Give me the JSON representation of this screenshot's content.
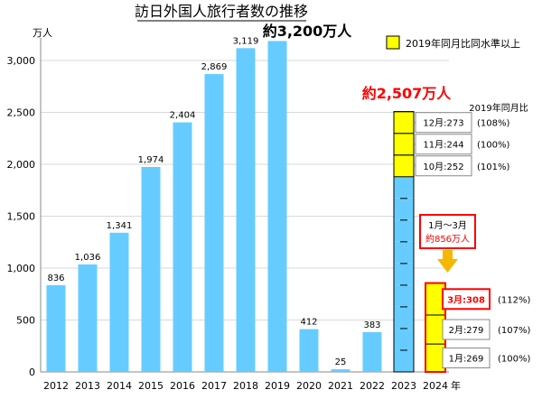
{
  "chart_data": {
    "type": "bar",
    "title": "訪日外国人旅行者数の推移",
    "ylabel": "万人",
    "xunit": "年",
    "ylim": [
      0,
      3200
    ],
    "yticks": [
      "0",
      "500",
      "1,000",
      "1,500",
      "2,000",
      "2,500",
      "3,000"
    ],
    "grid": "horizontal",
    "bars": [
      {
        "x": "2012",
        "value": 836,
        "label": "836"
      },
      {
        "x": "2013",
        "value": 1036,
        "label": "1,036"
      },
      {
        "x": "2014",
        "value": 1341,
        "label": "1,341"
      },
      {
        "x": "2015",
        "value": 1974,
        "label": "1,974"
      },
      {
        "x": "2016",
        "value": 2404,
        "label": "2,404"
      },
      {
        "x": "2017",
        "value": 2869,
        "label": "2,869"
      },
      {
        "x": "2018",
        "value": 3119,
        "label": "3,119"
      },
      {
        "x": "2019",
        "value": 3188,
        "label": ""
      },
      {
        "x": "2020",
        "value": 412,
        "label": "412"
      },
      {
        "x": "2021",
        "value": 25,
        "label": "25"
      },
      {
        "x": "2022",
        "value": 383,
        "label": "383"
      }
    ],
    "categories": [
      "2012",
      "2013",
      "2014",
      "2015",
      "2016",
      "2017",
      "2018",
      "2019",
      "2020",
      "2021",
      "2022",
      "2023",
      "2024"
    ],
    "callout_2019": "約3,200万人",
    "total_2023": "約2,507万人",
    "stack_2023": {
      "total": 2507,
      "segments": 12,
      "highlight_months": [
        10,
        11,
        12
      ],
      "labels": [
        {
          "month": 12,
          "text": "12月:273",
          "ratio": "(108%)"
        },
        {
          "month": 11,
          "text": "11月:244",
          "ratio": "(100%)"
        },
        {
          "month": 10,
          "text": "10月:252",
          "ratio": "(101%)"
        }
      ]
    },
    "stack_2024": {
      "total": 856,
      "segments": [
        {
          "month": 1,
          "value": 269,
          "text": "1月:269",
          "ratio": "(100%)",
          "highlight": true
        },
        {
          "month": 2,
          "value": 279,
          "text": "2月:279",
          "ratio": "(107%)",
          "highlight": true
        },
        {
          "month": 3,
          "value": 308,
          "text": "3月:308",
          "ratio": "(112%)",
          "highlight": true
        }
      ]
    },
    "ratio_header": "2019年同月比",
    "legend": {
      "label": "2019年同月比同水準以上",
      "placement": "top-right"
    },
    "callout_2024": {
      "line1": "1月～3月",
      "line2": "約856万人"
    },
    "colors": {
      "bar": "#66ccff",
      "highlight": "#ffff00",
      "accent": "#ff0000",
      "arrow": "#f5b700",
      "axis": "#888888",
      "grid": "#d9d9d9"
    }
  }
}
